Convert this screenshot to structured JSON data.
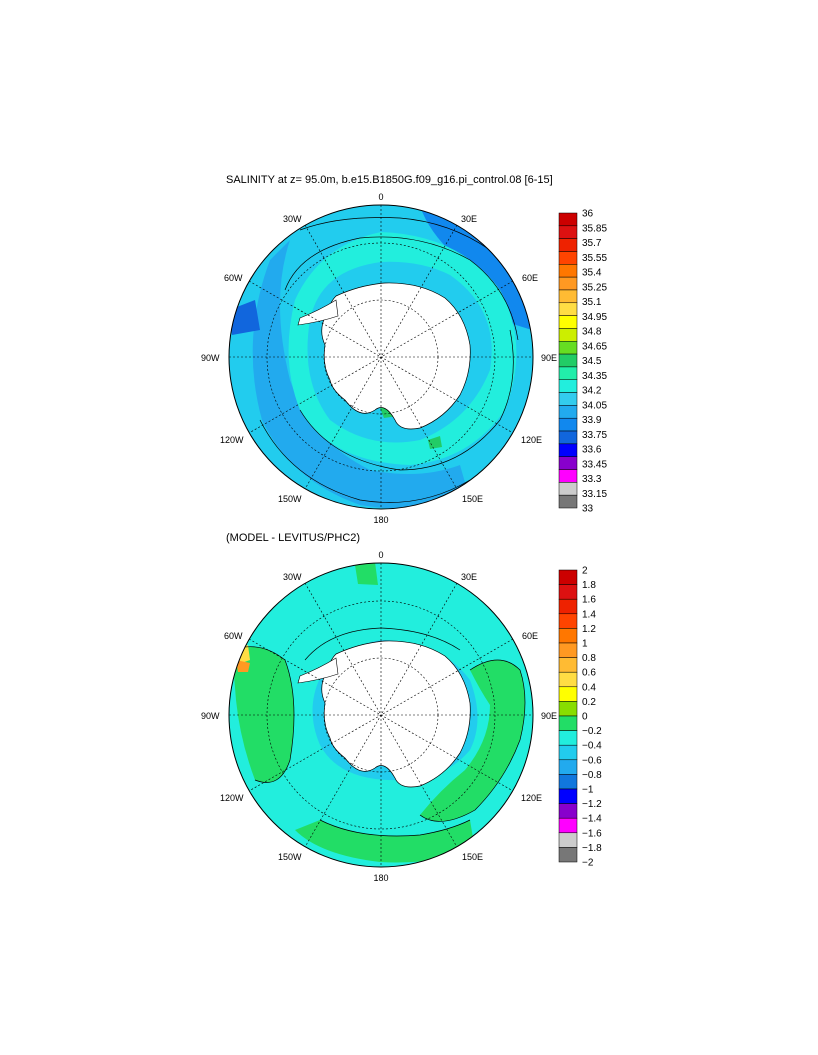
{
  "panel_top": {
    "title": "SALINITY at z=  95.0m, b.e15.B1850G.f09_g16.pi_control.08 [6-15]",
    "longitude_labels": {
      "0": "0",
      "30E": "30E",
      "60E": "60E",
      "90E": "90E",
      "120E": "120E",
      "150E": "150E",
      "180": "180",
      "150W": "150W",
      "120W": "120W",
      "90W": "90W",
      "60W": "60W",
      "30W": "30W"
    },
    "colorbar": {
      "labels": [
        "36",
        "35.85",
        "35.7",
        "35.55",
        "35.4",
        "35.25",
        "35.1",
        "34.95",
        "34.8",
        "34.65",
        "34.5",
        "34.35",
        "34.2",
        "34.05",
        "33.9",
        "33.75",
        "33.6",
        "33.45",
        "33.3",
        "33.15",
        "33"
      ],
      "colors": [
        "#cc0000",
        "#dd1111",
        "#ee2200",
        "#ff4400",
        "#ff7700",
        "#ff9922",
        "#ffbb33",
        "#ffdd44",
        "#ffff00",
        "#ccee00",
        "#66dd22",
        "#22cc66",
        "#22eeaa",
        "#22eedd",
        "#33ccee",
        "#22aaee",
        "#1188ee",
        "#1166dd",
        "#0000ff",
        "#8800cc",
        "#ff00ff",
        "#cccccc",
        "#777777"
      ]
    },
    "colors": {
      "ocean_main": "#22ccee",
      "ocean_high": "#1188ee",
      "ocean_mid": "#22aaee",
      "coast_band": "#22eedd",
      "land": "#ffffff"
    }
  },
  "panel_bottom": {
    "title": "(MODEL - LEVITUS/PHC2)",
    "longitude_labels": {
      "0": "0",
      "30E": "30E",
      "60E": "60E",
      "90E": "90E",
      "120E": "120E",
      "150E": "150E",
      "180": "180",
      "150W": "150W",
      "120W": "120W",
      "90W": "90W",
      "60W": "60W",
      "30W": "30W"
    },
    "colorbar": {
      "labels": [
        "2",
        "1.8",
        "1.6",
        "1.4",
        "1.2",
        "1",
        "0.8",
        "0.6",
        "0.4",
        "0.2",
        "0",
        "−0.2",
        "−0.4",
        "−0.6",
        "−0.8",
        "−1",
        "−1.2",
        "−1.4",
        "−1.6",
        "−1.8",
        "−2"
      ],
      "colors": [
        "#cc0000",
        "#dd1111",
        "#ee2200",
        "#ff4400",
        "#ff7700",
        "#ff9922",
        "#ffbb33",
        "#ffdd44",
        "#ffff00",
        "#88dd00",
        "#22dd66",
        "#22eedd",
        "#22ccee",
        "#22aaee",
        "#1177dd",
        "#0000ff",
        "#8800cc",
        "#ff00ff",
        "#cccccc",
        "#777777"
      ]
    },
    "colors": {
      "ocean_main": "#22eedd",
      "anomaly_pos": "#22dd66",
      "anomaly_neg": "#22ccee",
      "land": "#ffffff"
    }
  }
}
